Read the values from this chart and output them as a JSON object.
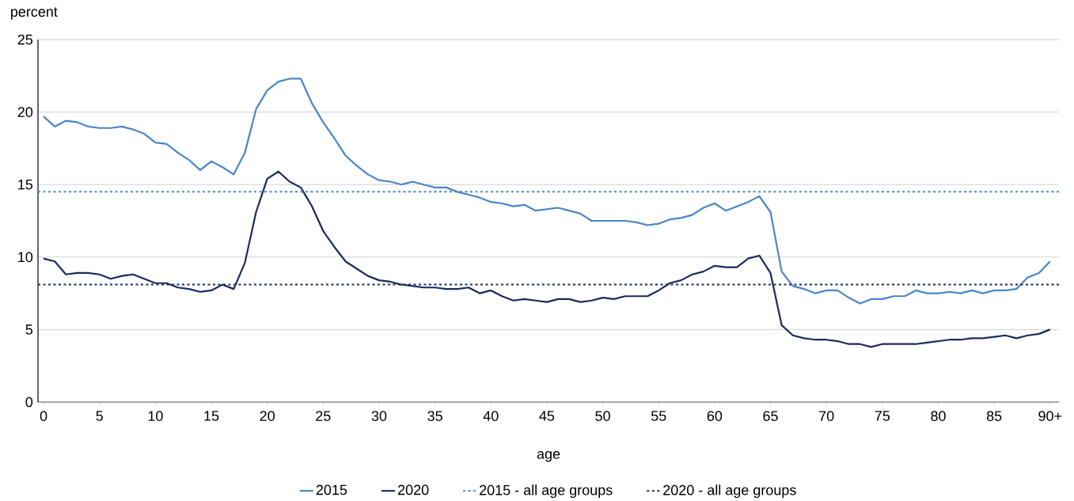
{
  "chart_data": {
    "type": "line",
    "xlabel": "age",
    "ylabel": "percent",
    "x": [
      0,
      1,
      2,
      3,
      4,
      5,
      6,
      7,
      8,
      9,
      10,
      11,
      12,
      13,
      14,
      15,
      16,
      17,
      18,
      19,
      20,
      21,
      22,
      23,
      24,
      25,
      26,
      27,
      28,
      29,
      30,
      31,
      32,
      33,
      34,
      35,
      36,
      37,
      38,
      39,
      40,
      41,
      42,
      43,
      44,
      45,
      46,
      47,
      48,
      49,
      50,
      51,
      52,
      53,
      54,
      55,
      56,
      57,
      58,
      59,
      60,
      61,
      62,
      63,
      64,
      65,
      66,
      67,
      68,
      69,
      70,
      71,
      72,
      73,
      74,
      75,
      76,
      77,
      78,
      79,
      80,
      81,
      82,
      83,
      84,
      85,
      86,
      87,
      88,
      89,
      90
    ],
    "series": [
      {
        "name": "2015",
        "color": "#4a86c5",
        "values": [
          19.7,
          19.0,
          19.4,
          19.3,
          19.0,
          18.9,
          18.9,
          19.0,
          18.8,
          18.5,
          17.9,
          17.8,
          17.2,
          16.7,
          16.0,
          16.6,
          16.2,
          15.7,
          17.2,
          20.2,
          21.5,
          22.1,
          22.3,
          22.3,
          20.6,
          19.3,
          18.2,
          17.0,
          16.3,
          15.7,
          15.3,
          15.2,
          15.0,
          15.2,
          15.0,
          14.8,
          14.8,
          14.5,
          14.3,
          14.1,
          13.8,
          13.7,
          13.5,
          13.6,
          13.2,
          13.3,
          13.4,
          13.2,
          13.0,
          12.5,
          12.5,
          12.5,
          12.5,
          12.4,
          12.2,
          12.3,
          12.6,
          12.7,
          12.9,
          13.4,
          13.7,
          13.2,
          13.5,
          13.8,
          14.2,
          13.1,
          9.0,
          8.0,
          7.8,
          7.5,
          7.7,
          7.7,
          7.2,
          6.8,
          7.1,
          7.1,
          7.3,
          7.3,
          7.7,
          7.5,
          7.5,
          7.6,
          7.5,
          7.7,
          7.5,
          7.7,
          7.7,
          7.8,
          8.6,
          8.9,
          9.7
        ]
      },
      {
        "name": "2020",
        "color": "#1b2a5e",
        "values": [
          9.9,
          9.7,
          8.8,
          8.9,
          8.9,
          8.8,
          8.5,
          8.7,
          8.8,
          8.5,
          8.2,
          8.2,
          7.9,
          7.8,
          7.6,
          7.7,
          8.1,
          7.8,
          9.6,
          13.1,
          15.4,
          15.9,
          15.2,
          14.8,
          13.5,
          11.8,
          10.7,
          9.7,
          9.2,
          8.7,
          8.4,
          8.3,
          8.1,
          8.0,
          7.9,
          7.9,
          7.8,
          7.8,
          7.9,
          7.5,
          7.7,
          7.3,
          7.0,
          7.1,
          7.0,
          6.9,
          7.1,
          7.1,
          6.9,
          7.0,
          7.2,
          7.1,
          7.3,
          7.3,
          7.3,
          7.7,
          8.2,
          8.4,
          8.8,
          9.0,
          9.4,
          9.3,
          9.3,
          9.9,
          10.1,
          8.9,
          5.3,
          4.6,
          4.4,
          4.3,
          4.3,
          4.2,
          4.0,
          4.0,
          3.8,
          4.0,
          4.0,
          4.0,
          4.0,
          4.1,
          4.2,
          4.3,
          4.3,
          4.4,
          4.4,
          4.5,
          4.6,
          4.4,
          4.6,
          4.7,
          5.0
        ]
      }
    ],
    "ref_lines": [
      {
        "axis": "y",
        "value": 14.5,
        "label": "2015 - all age groups",
        "color": "#4a86c5",
        "line_style": "dotted"
      },
      {
        "axis": "y",
        "value": 8.1,
        "label": "2020 - all age groups",
        "color": "#1b2a5e",
        "line_style": "dotted"
      }
    ],
    "xlim": [
      -0.5,
      90.8
    ],
    "xticks": [
      0,
      5,
      10,
      15,
      20,
      25,
      30,
      35,
      40,
      45,
      50,
      55,
      60,
      65,
      70,
      75,
      80,
      85,
      {
        "value": 90,
        "label": "90+"
      }
    ],
    "ylim": [
      0,
      25
    ],
    "yticks": [
      0,
      5,
      10,
      15,
      20,
      25
    ],
    "grid": "y",
    "legend": "bottom",
    "marker": "none",
    "line_style": "solid"
  }
}
